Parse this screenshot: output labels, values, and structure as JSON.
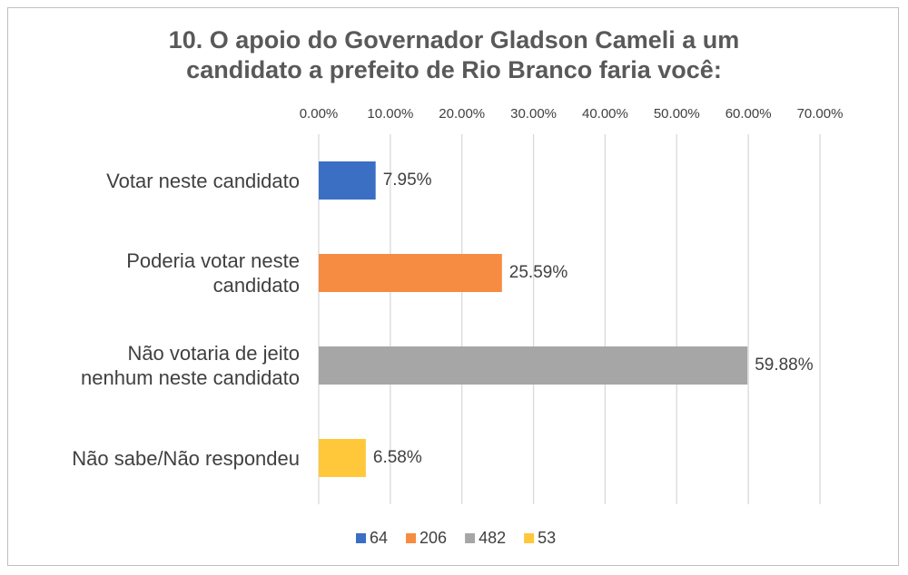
{
  "chart_data": {
    "type": "hbar",
    "title": "10. O apoio do Governador Gladson Cameli a um candidato a prefeito de Rio Branco faria você:",
    "categories": [
      "Votar neste candidato",
      "Poderia votar neste candidato",
      "Não votaria de jeito nenhum neste candidato",
      "Não sabe/Não respondeu"
    ],
    "series": [
      {
        "name": "64",
        "color": "#3a6fc4",
        "values": [
          7.95,
          null,
          null,
          null
        ],
        "value_labels": [
          "7.95%",
          null,
          null,
          null
        ]
      },
      {
        "name": "206",
        "color": "#f68b42",
        "values": [
          null,
          25.59,
          null,
          null
        ],
        "value_labels": [
          null,
          "25.59%",
          null,
          null
        ]
      },
      {
        "name": "482",
        "color": "#a6a6a6",
        "values": [
          null,
          null,
          59.88,
          null
        ],
        "value_labels": [
          null,
          null,
          "59.88%",
          null
        ]
      },
      {
        "name": "53",
        "color": "#fec83a",
        "values": [
          null,
          null,
          null,
          6.58
        ],
        "value_labels": [
          null,
          null,
          null,
          "6.58%"
        ]
      }
    ],
    "xlim": [
      0,
      70
    ],
    "xticks": [
      {
        "value": 0,
        "label": "0.00%"
      },
      {
        "value": 10,
        "label": "10.00%"
      },
      {
        "value": 20,
        "label": "20.00%"
      },
      {
        "value": 30,
        "label": "30.00%"
      },
      {
        "value": 40,
        "label": "40.00%"
      },
      {
        "value": 50,
        "label": "50.00%"
      },
      {
        "value": 60,
        "label": "60.00%"
      },
      {
        "value": 70,
        "label": "70.00%"
      }
    ],
    "grid": true
  }
}
